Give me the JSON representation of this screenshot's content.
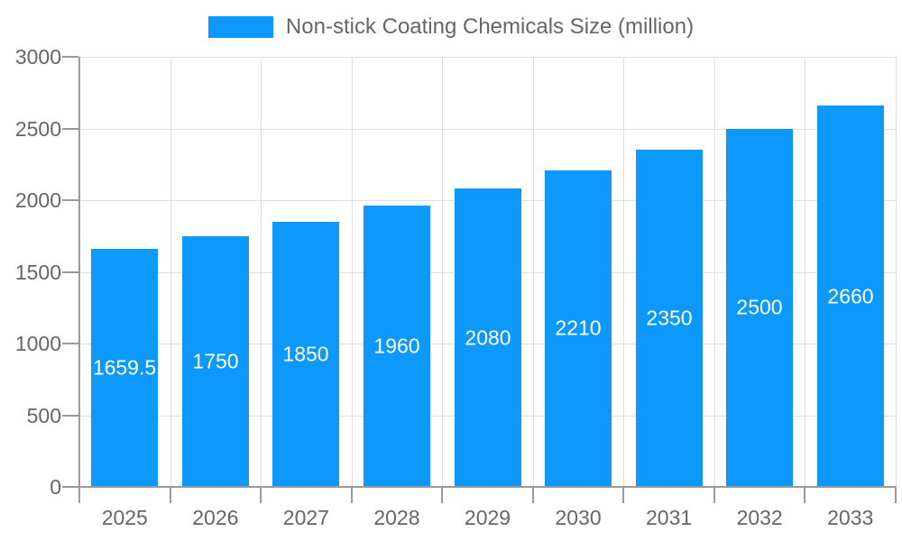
{
  "chart_data": {
    "type": "bar",
    "title": "Non-stick Coating Chemicals Size (million)",
    "categories": [
      "2025",
      "2026",
      "2027",
      "2028",
      "2029",
      "2030",
      "2031",
      "2032",
      "2033"
    ],
    "values": [
      1659.5,
      1750,
      1850,
      1960,
      2080,
      2210,
      2350,
      2500,
      2660
    ],
    "series": [
      {
        "name": "Non-stick Coating Chemicals Size (million)",
        "values": [
          1659.5,
          1750,
          1850,
          1960,
          2080,
          2210,
          2350,
          2500,
          2660
        ]
      }
    ],
    "value_labels": [
      "1659.5",
      "1750",
      "1850",
      "1960",
      "2080",
      "2210",
      "2350",
      "2500",
      "2660"
    ],
    "xlabel": "",
    "ylabel": "",
    "ylim": [
      0,
      3000
    ],
    "yticks": [
      0,
      500,
      1000,
      1500,
      2000,
      2500,
      3000
    ],
    "grid": true,
    "legend_position": "top",
    "colors": {
      "bar": "#0d98fc",
      "grid": "#dedede",
      "axis": "#9a9a9a",
      "tick": "#9a9a9a",
      "axis_text": "#666666",
      "legend_text": "#666666",
      "value_label": "#ffffff",
      "background": "#ffffff"
    }
  }
}
